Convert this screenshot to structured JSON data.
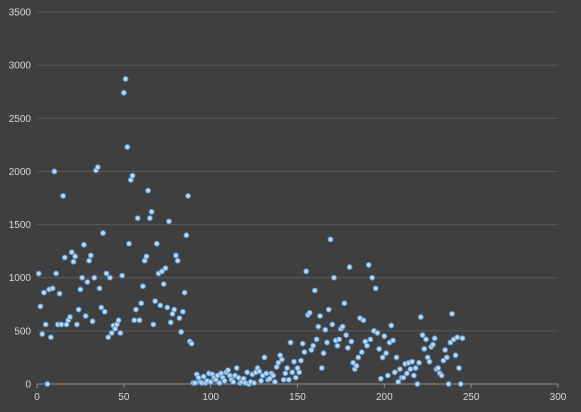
{
  "chart_data": {
    "type": "scatter",
    "title": "",
    "xlabel": "",
    "ylabel": "",
    "xlim": [
      0,
      300
    ],
    "ylim": [
      0,
      3500
    ],
    "x_ticks": [
      0,
      50,
      100,
      150,
      200,
      250,
      300
    ],
    "y_ticks": [
      0,
      500,
      1000,
      1500,
      2000,
      2500,
      3000,
      3500
    ],
    "grid": "horizontal major gridlines",
    "legend": "none",
    "colors": {
      "background": "#3f3f3f",
      "grid": "#5a5a5a",
      "marker": "#5b9bd5",
      "marker_highlight": "#bdd7ee",
      "tick_text": "#d9d9d9"
    },
    "series": [
      {
        "points": [
          [
            1,
            1040
          ],
          [
            2,
            730
          ],
          [
            3,
            470
          ],
          [
            4,
            860
          ],
          [
            5,
            560
          ],
          [
            6,
            0
          ],
          [
            7,
            890
          ],
          [
            8,
            440
          ],
          [
            9,
            900
          ],
          [
            10,
            2000
          ],
          [
            11,
            1040
          ],
          [
            12,
            560
          ],
          [
            13,
            850
          ],
          [
            14,
            560
          ],
          [
            15,
            1770
          ],
          [
            16,
            1190
          ],
          [
            17,
            560
          ],
          [
            18,
            600
          ],
          [
            19,
            630
          ],
          [
            20,
            1240
          ],
          [
            21,
            1150
          ],
          [
            22,
            1200
          ],
          [
            23,
            560
          ],
          [
            24,
            700
          ],
          [
            25,
            890
          ],
          [
            26,
            1000
          ],
          [
            27,
            1310
          ],
          [
            28,
            640
          ],
          [
            29,
            960
          ],
          [
            30,
            1160
          ],
          [
            31,
            1210
          ],
          [
            32,
            590
          ],
          [
            33,
            1000
          ],
          [
            34,
            2010
          ],
          [
            35,
            2040
          ],
          [
            36,
            900
          ],
          [
            37,
            720
          ],
          [
            38,
            1420
          ],
          [
            39,
            680
          ],
          [
            40,
            1040
          ],
          [
            41,
            440
          ],
          [
            42,
            1000
          ],
          [
            43,
            480
          ],
          [
            44,
            550
          ],
          [
            45,
            520
          ],
          [
            46,
            560
          ],
          [
            47,
            600
          ],
          [
            48,
            480
          ],
          [
            49,
            1020
          ],
          [
            50,
            2740
          ],
          [
            51,
            2870
          ],
          [
            52,
            2230
          ],
          [
            53,
            1320
          ],
          [
            54,
            1920
          ],
          [
            55,
            1960
          ],
          [
            56,
            600
          ],
          [
            57,
            700
          ],
          [
            58,
            1560
          ],
          [
            59,
            600
          ],
          [
            60,
            760
          ],
          [
            61,
            920
          ],
          [
            62,
            1160
          ],
          [
            63,
            1200
          ],
          [
            64,
            1820
          ],
          [
            65,
            1560
          ],
          [
            66,
            1620
          ],
          [
            67,
            560
          ],
          [
            68,
            780
          ],
          [
            69,
            1320
          ],
          [
            70,
            1040
          ],
          [
            71,
            740
          ],
          [
            72,
            1060
          ],
          [
            73,
            940
          ],
          [
            74,
            1090
          ],
          [
            75,
            720
          ],
          [
            76,
            1530
          ],
          [
            77,
            580
          ],
          [
            78,
            660
          ],
          [
            79,
            700
          ],
          [
            80,
            1210
          ],
          [
            81,
            1160
          ],
          [
            82,
            620
          ],
          [
            83,
            490
          ],
          [
            84,
            680
          ],
          [
            85,
            860
          ],
          [
            86,
            1400
          ],
          [
            87,
            1770
          ],
          [
            88,
            400
          ],
          [
            89,
            380
          ],
          [
            90,
            10
          ],
          [
            91,
            10
          ],
          [
            92,
            90
          ],
          [
            93,
            60
          ],
          [
            94,
            20
          ],
          [
            95,
            10
          ],
          [
            96,
            70
          ],
          [
            97,
            10
          ],
          [
            98,
            30
          ],
          [
            99,
            100
          ],
          [
            100,
            20
          ],
          [
            101,
            90
          ],
          [
            102,
            60
          ],
          [
            103,
            40
          ],
          [
            104,
            80
          ],
          [
            105,
            10
          ],
          [
            106,
            100
          ],
          [
            107,
            60
          ],
          [
            108,
            30
          ],
          [
            109,
            110
          ],
          [
            110,
            130
          ],
          [
            111,
            80
          ],
          [
            112,
            40
          ],
          [
            113,
            20
          ],
          [
            114,
            80
          ],
          [
            115,
            150
          ],
          [
            116,
            60
          ],
          [
            117,
            10
          ],
          [
            118,
            20
          ],
          [
            119,
            50
          ],
          [
            120,
            10
          ],
          [
            121,
            110
          ],
          [
            122,
            0
          ],
          [
            123,
            20
          ],
          [
            124,
            90
          ],
          [
            125,
            10
          ],
          [
            126,
            110
          ],
          [
            127,
            150
          ],
          [
            128,
            120
          ],
          [
            129,
            30
          ],
          [
            130,
            80
          ],
          [
            131,
            250
          ],
          [
            132,
            100
          ],
          [
            133,
            40
          ],
          [
            134,
            50
          ],
          [
            135,
            100
          ],
          [
            136,
            80
          ],
          [
            137,
            20
          ],
          [
            138,
            160
          ],
          [
            139,
            200
          ],
          [
            140,
            270
          ],
          [
            141,
            230
          ],
          [
            142,
            40
          ],
          [
            143,
            100
          ],
          [
            144,
            150
          ],
          [
            145,
            40
          ],
          [
            146,
            390
          ],
          [
            147,
            110
          ],
          [
            148,
            210
          ],
          [
            149,
            60
          ],
          [
            150,
            150
          ],
          [
            151,
            110
          ],
          [
            152,
            220
          ],
          [
            153,
            380
          ],
          [
            154,
            300
          ],
          [
            155,
            1060
          ],
          [
            156,
            650
          ],
          [
            157,
            670
          ],
          [
            158,
            320
          ],
          [
            159,
            360
          ],
          [
            160,
            880
          ],
          [
            161,
            420
          ],
          [
            162,
            540
          ],
          [
            163,
            640
          ],
          [
            164,
            150
          ],
          [
            165,
            290
          ],
          [
            166,
            510
          ],
          [
            167,
            390
          ],
          [
            168,
            700
          ],
          [
            169,
            1360
          ],
          [
            170,
            560
          ],
          [
            171,
            1000
          ],
          [
            172,
            410
          ],
          [
            173,
            360
          ],
          [
            174,
            420
          ],
          [
            175,
            520
          ],
          [
            176,
            540
          ],
          [
            177,
            760
          ],
          [
            178,
            460
          ],
          [
            179,
            340
          ],
          [
            180,
            1100
          ],
          [
            181,
            400
          ],
          [
            182,
            200
          ],
          [
            183,
            140
          ],
          [
            184,
            170
          ],
          [
            185,
            250
          ],
          [
            186,
            620
          ],
          [
            187,
            300
          ],
          [
            188,
            600
          ],
          [
            189,
            400
          ],
          [
            190,
            360
          ],
          [
            191,
            1120
          ],
          [
            192,
            420
          ],
          [
            193,
            1000
          ],
          [
            194,
            500
          ],
          [
            195,
            900
          ],
          [
            196,
            480
          ],
          [
            197,
            330
          ],
          [
            198,
            50
          ],
          [
            199,
            250
          ],
          [
            200,
            450
          ],
          [
            201,
            290
          ],
          [
            202,
            80
          ],
          [
            203,
            390
          ],
          [
            204,
            550
          ],
          [
            205,
            410
          ],
          [
            206,
            110
          ],
          [
            207,
            250
          ],
          [
            208,
            20
          ],
          [
            209,
            140
          ],
          [
            210,
            60
          ],
          [
            211,
            60
          ],
          [
            212,
            190
          ],
          [
            213,
            100
          ],
          [
            214,
            200
          ],
          [
            215,
            140
          ],
          [
            216,
            210
          ],
          [
            217,
            80
          ],
          [
            218,
            150
          ],
          [
            219,
            0
          ],
          [
            220,
            200
          ],
          [
            221,
            630
          ],
          [
            222,
            460
          ],
          [
            223,
            330
          ],
          [
            224,
            420
          ],
          [
            225,
            250
          ],
          [
            226,
            210
          ],
          [
            227,
            350
          ],
          [
            228,
            370
          ],
          [
            229,
            430
          ],
          [
            230,
            140
          ],
          [
            231,
            150
          ],
          [
            232,
            100
          ],
          [
            233,
            80
          ],
          [
            234,
            220
          ],
          [
            235,
            320
          ],
          [
            236,
            250
          ],
          [
            237,
            0
          ],
          [
            238,
            390
          ],
          [
            239,
            660
          ],
          [
            240,
            420
          ],
          [
            241,
            270
          ],
          [
            242,
            440
          ],
          [
            243,
            150
          ],
          [
            244,
            0
          ],
          [
            245,
            430
          ]
        ]
      }
    ]
  }
}
